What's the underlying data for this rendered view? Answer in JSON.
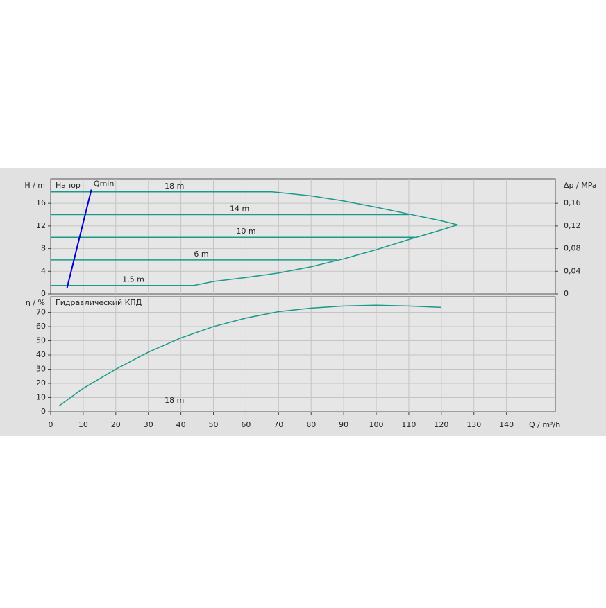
{
  "chart_data": [
    {
      "type": "line",
      "y_label": "H / m",
      "y2_label": "Δp / MPa",
      "subtitle": "Напор",
      "xlim": [
        0,
        155
      ],
      "ylim": [
        0,
        20.3
      ],
      "yticks": [
        0,
        4,
        8,
        12,
        16
      ],
      "y2lim": [
        0,
        0.203
      ],
      "y2ticks": [
        0,
        {
          "value": 0.04,
          "label": "0,04"
        },
        {
          "value": 0.08,
          "label": "0,08"
        },
        {
          "value": 0.12,
          "label": "0,12"
        },
        {
          "value": 0.16,
          "label": "0,16"
        }
      ],
      "grid": true,
      "series": [
        {
          "name": "18 m",
          "color": "#1a9a8a",
          "x": [
            0,
            68,
            70,
            80,
            90,
            100,
            110,
            120,
            125
          ],
          "values": [
            18,
            18,
            17.9,
            17.3,
            16.4,
            15.3,
            14.1,
            12.9,
            12.2
          ]
        },
        {
          "name": "14 m",
          "color": "#1a9a8a",
          "x": [
            0,
            110
          ],
          "values": [
            14,
            14
          ]
        },
        {
          "name": "10 m",
          "color": "#1a9a8a",
          "x": [
            0,
            112
          ],
          "values": [
            10,
            10
          ]
        },
        {
          "name": "6 m",
          "color": "#1a9a8a",
          "x": [
            0,
            88
          ],
          "values": [
            6,
            6
          ]
        },
        {
          "name": "1,5 m",
          "color": "#1a9a8a",
          "x": [
            0,
            44,
            50,
            60,
            70,
            80,
            90,
            100,
            110,
            120,
            125
          ],
          "values": [
            1.5,
            1.5,
            2.2,
            2.9,
            3.7,
            4.8,
            6.2,
            7.8,
            9.6,
            11.3,
            12.2
          ]
        },
        {
          "name": "Qmin",
          "color": "#0000cc",
          "x": [
            5,
            12.5
          ],
          "values": [
            1,
            18.4
          ]
        }
      ]
    },
    {
      "type": "line",
      "y_label": "η / %",
      "x_label": "Q / m³/h",
      "subtitle": "Гидравлический КПД",
      "xlim": [
        0,
        155
      ],
      "ylim": [
        0,
        81
      ],
      "yticks": [
        0,
        10,
        20,
        30,
        40,
        50,
        60,
        70
      ],
      "xticks": [
        0,
        10,
        20,
        30,
        40,
        50,
        60,
        70,
        80,
        90,
        100,
        110,
        120,
        130,
        140
      ],
      "grid": true,
      "series": [
        {
          "name": "18 m",
          "color": "#1a9a8a",
          "x": [
            2.5,
            10,
            20,
            30,
            40,
            50,
            60,
            70,
            80,
            90,
            100,
            110,
            120
          ],
          "values": [
            4,
            16.5,
            30,
            42,
            52,
            60,
            66,
            70.5,
            73,
            74.5,
            75,
            74.5,
            73.5
          ]
        }
      ]
    }
  ]
}
